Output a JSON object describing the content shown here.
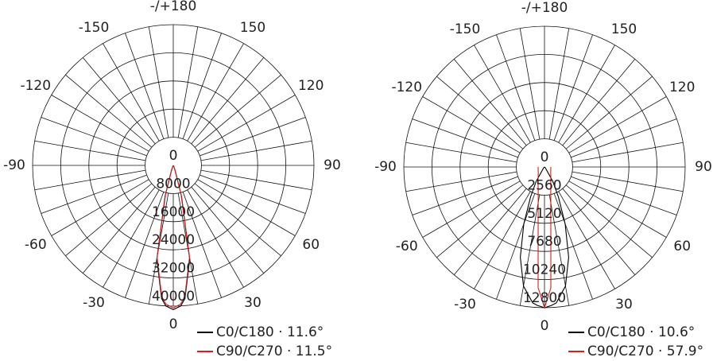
{
  "chart_data": [
    {
      "type": "polar",
      "xlim": [
        -180,
        180
      ],
      "xticks": [
        {
          "value": 180,
          "label": "-/+180"
        },
        150,
        120,
        90,
        60,
        30,
        0,
        -30,
        -60,
        -90,
        -120,
        -150
      ],
      "ylim": [
        0,
        40000
      ],
      "yticks": [
        0,
        8000,
        16000,
        24000,
        32000,
        40000
      ],
      "x": [
        -90,
        -60,
        -45,
        -30,
        -25,
        -20,
        -15,
        -10,
        -5,
        -3,
        0,
        3,
        5,
        10,
        15,
        20,
        25,
        30,
        45,
        60,
        90
      ],
      "series": [
        {
          "name": "C0/C180 · 11.6°",
          "color": "#000000",
          "values": [
            0,
            0,
            0,
            0,
            300,
            1500,
            9000,
            27000,
            38000,
            40000,
            41000,
            40000,
            38000,
            27000,
            9000,
            1500,
            300,
            0,
            0,
            0,
            0
          ]
        },
        {
          "name": "C90/C270 · 11.5°",
          "color": "#d62020",
          "values": [
            0,
            0,
            0,
            0,
            200,
            1200,
            8500,
            26500,
            37500,
            39500,
            40500,
            39500,
            37500,
            26500,
            8500,
            1200,
            200,
            0,
            0,
            0,
            0
          ]
        }
      ]
    },
    {
      "type": "polar",
      "xlim": [
        -180,
        180
      ],
      "xticks": [
        {
          "value": 180,
          "label": "-/+180"
        },
        150,
        120,
        90,
        60,
        30,
        0,
        -30,
        -60,
        -90,
        -120,
        -150
      ],
      "ylim": [
        0,
        12800
      ],
      "yticks": [
        0,
        2560,
        5120,
        7680,
        10240,
        12800
      ],
      "x": [
        -90,
        -60,
        -45,
        -30,
        -25,
        -20,
        -15,
        -10,
        -5,
        -3,
        0,
        3,
        5,
        10,
        15,
        20,
        25,
        30,
        45,
        60,
        90
      ],
      "series": [
        {
          "name": "C0/C180 · 10.6°",
          "color": "#000000",
          "values": [
            0,
            0,
            100,
            1500,
            3000,
            5500,
            8500,
            11000,
            12400,
            12600,
            12800,
            12600,
            12400,
            11000,
            8500,
            5500,
            3000,
            1500,
            100,
            0,
            0
          ]
        },
        {
          "name": "C90/C270 · 57.9°",
          "color": "#d62020",
          "values": [
            580,
            660,
            800,
            1150,
            1350,
            1700,
            2200,
            3300,
            6650,
            11000,
            12800,
            11000,
            6650,
            3300,
            2200,
            1700,
            1350,
            1150,
            800,
            660,
            580
          ]
        }
      ]
    }
  ]
}
